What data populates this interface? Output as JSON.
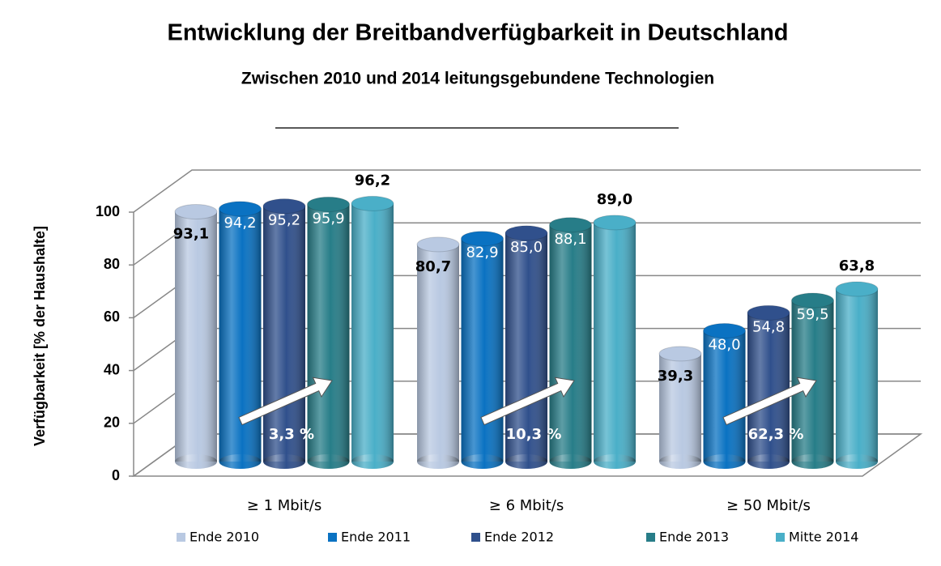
{
  "chart_data": {
    "type": "bar",
    "title": "Entwicklung der Breitbandverfügbarkeit in Deutschland",
    "subtitle": "Zwischen 2010 und 2014 leitungsgebundene Technologien",
    "y_label": "Verfügbarkeit [% der Haushalte]",
    "categories": [
      "≥ 1 Mbit/s",
      "≥ 6 Mbit/s",
      "≥ 50 Mbit/s"
    ],
    "series": [
      {
        "name": "Ende 2010",
        "color": "#b9c9e2",
        "values": [
          93.1,
          80.7,
          39.3
        ],
        "value_labels": [
          "93,1",
          "80,7",
          "39,3"
        ]
      },
      {
        "name": "Ende 2011",
        "color": "#0a72c2",
        "values": [
          94.2,
          82.9,
          48.0
        ],
        "value_labels": [
          "94,2",
          "82,9",
          "48,0"
        ]
      },
      {
        "name": "Ende 2012",
        "color": "#30508c",
        "values": [
          95.2,
          85.0,
          54.8
        ],
        "value_labels": [
          "95,2",
          "85,0",
          "54,8"
        ]
      },
      {
        "name": "Ende 2013",
        "color": "#277d88",
        "values": [
          95.9,
          88.1,
          59.5
        ],
        "value_labels": [
          "95,9",
          "88,1",
          "59,5"
        ]
      },
      {
        "name": "Mitte 2014",
        "color": "#4aafc8",
        "values": [
          96.2,
          89.0,
          63.8
        ],
        "value_labels": [
          "96,2",
          "89,0",
          "63,8"
        ]
      }
    ],
    "annotations": [
      "3,3 %",
      "10,3 %",
      "62,3 %"
    ],
    "ylim": [
      0,
      100
    ],
    "yticks": [
      0,
      20,
      40,
      60,
      80,
      100
    ],
    "grid": true,
    "legend": "bottom"
  }
}
